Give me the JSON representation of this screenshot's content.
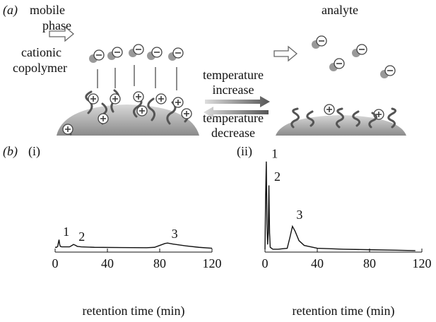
{
  "figure": {
    "panel_a": {
      "label": "(a)",
      "mobile_phase": [
        "mobile",
        "phase"
      ],
      "analyte": "analyte",
      "copolymer": [
        "cationic",
        "copolymer"
      ],
      "increase": [
        "temperature",
        "increase"
      ],
      "decrease": [
        "temperature",
        "decrease"
      ]
    },
    "panel_b": {
      "label": "(b)"
    }
  },
  "chart_data": [
    {
      "type": "line",
      "panel": "(i)",
      "xlabel": "retention time (min)",
      "color": "#111111",
      "x": [
        0,
        1,
        2,
        2.5,
        3,
        3.5,
        4,
        5,
        8,
        11,
        13,
        14,
        15,
        17,
        20,
        30,
        50,
        70,
        76,
        80,
        84,
        86,
        90,
        100,
        110,
        120
      ],
      "values": [
        5,
        5,
        6,
        10,
        13,
        8,
        6,
        5.5,
        5.5,
        5.5,
        7,
        8,
        7.5,
        6,
        5.5,
        5,
        4.8,
        4.6,
        5,
        7,
        9,
        9.5,
        8.5,
        6.5,
        5,
        4
      ],
      "xlim": [
        0,
        120
      ],
      "xticks": [
        0,
        40,
        80,
        120
      ],
      "ylim": [
        0,
        100
      ],
      "annotations": [
        {
          "text": "1",
          "x": 6,
          "y": 17
        },
        {
          "text": "2",
          "x": 18,
          "y": 12
        },
        {
          "text": "3",
          "x": 89,
          "y": 15
        }
      ]
    },
    {
      "type": "line",
      "panel": "(ii)",
      "xlabel": "retention time (min)",
      "color": "#111111",
      "x": [
        0,
        0.5,
        1,
        1.5,
        2,
        2.5,
        3,
        3.5,
        4,
        6,
        10,
        17,
        19,
        21,
        23,
        26,
        30,
        40,
        60,
        80,
        100,
        115
      ],
      "values": [
        3,
        60,
        95,
        30,
        8,
        20,
        70,
        20,
        5,
        3,
        3,
        4,
        15,
        27,
        22,
        12,
        7,
        4,
        3,
        2.5,
        2,
        1.5
      ],
      "xlim": [
        0,
        120
      ],
      "xticks": [
        0,
        40,
        80,
        120
      ],
      "ylim": [
        0,
        100
      ],
      "annotations": [
        {
          "text": "1",
          "x": 5,
          "y": 99
        },
        {
          "text": "2",
          "x": 7,
          "y": 75
        },
        {
          "text": "3",
          "x": 24,
          "y": 35
        }
      ]
    }
  ]
}
